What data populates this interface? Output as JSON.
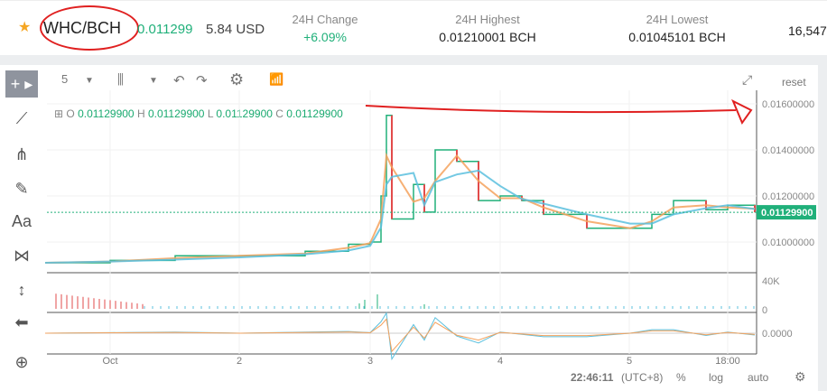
{
  "header": {
    "pair": "WHC/BCH",
    "last_price": "0.011299",
    "usd_price": "5.84 USD",
    "stats": [
      {
        "label": "24H Change",
        "value": "+6.09%",
        "color": "#20b07a"
      },
      {
        "label": "24H Highest",
        "value": "0.01210001 BCH"
      },
      {
        "label": "24H Lowest",
        "value": "0.01045101 BCH"
      }
    ],
    "volume_partial": "16,547"
  },
  "toolbar": {
    "interval": "5",
    "reset": "reset"
  },
  "tools": [
    "crosshair-icon",
    "trend-line-icon",
    "pitchfork-icon",
    "brush-icon",
    "text-icon",
    "pattern-icon",
    "measure-icon",
    "back-arrow-icon",
    "zoom-in-icon"
  ],
  "tool_text": "Aa",
  "ohlc": {
    "o_label": "O",
    "o": "0.01129900",
    "h_label": "H",
    "h": "0.01129900",
    "l_label": "L",
    "l": "0.01129900",
    "c_label": "C",
    "c": "0.01129900"
  },
  "chart_data": {
    "type": "line",
    "colors": {
      "up": "#20b07a",
      "down": "#e24b4b",
      "ma1": "#f5a25d",
      "ma2": "#5bc0de"
    },
    "price_axis": {
      "ticks": [
        "0.01600000",
        "0.01400000",
        "0.01200000",
        "0.01000000"
      ],
      "last": "0.01129900"
    },
    "volume_axis": {
      "ticks": [
        "40K",
        "0"
      ]
    },
    "osc_axis": {
      "ticks": [
        "0.0000"
      ]
    },
    "x_ticks": [
      "Oct",
      "2",
      "3",
      "4",
      "5",
      "18:00"
    ],
    "series": [
      {
        "t": "09-30 12:00",
        "p": 0.0091
      },
      {
        "t": "10-01 00:00",
        "p": 0.0092
      },
      {
        "t": "10-01 12:00",
        "p": 0.0094
      },
      {
        "t": "10-02 00:00",
        "p": 0.0094
      },
      {
        "t": "10-02 12:00",
        "p": 0.0096
      },
      {
        "t": "10-02 20:00",
        "p": 0.0099
      },
      {
        "t": "10-03 00:00",
        "p": 0.01
      },
      {
        "t": "10-03 02:00",
        "p": 0.012
      },
      {
        "t": "10-03 03:00",
        "p": 0.0155
      },
      {
        "t": "10-03 04:00",
        "p": 0.011
      },
      {
        "t": "10-03 08:00",
        "p": 0.0125
      },
      {
        "t": "10-03 10:00",
        "p": 0.0113
      },
      {
        "t": "10-03 12:00",
        "p": 0.014
      },
      {
        "t": "10-03 16:00",
        "p": 0.0135
      },
      {
        "t": "10-03 20:00",
        "p": 0.0118
      },
      {
        "t": "10-04 00:00",
        "p": 0.012
      },
      {
        "t": "10-04 04:00",
        "p": 0.0118
      },
      {
        "t": "10-04 08:00",
        "p": 0.0112
      },
      {
        "t": "10-04 16:00",
        "p": 0.0106
      },
      {
        "t": "10-05 00:00",
        "p": 0.0106
      },
      {
        "t": "10-05 04:00",
        "p": 0.0112
      },
      {
        "t": "10-05 08:00",
        "p": 0.0118
      },
      {
        "t": "10-05 14:00",
        "p": 0.0114
      },
      {
        "t": "10-05 18:00",
        "p": 0.0116
      },
      {
        "t": "10-05 23:00",
        "p": 0.01129
      }
    ]
  },
  "footer": {
    "time": "22:46:11",
    "tz": "(UTC+8)",
    "percent": "%",
    "log": "log",
    "auto": "auto"
  }
}
